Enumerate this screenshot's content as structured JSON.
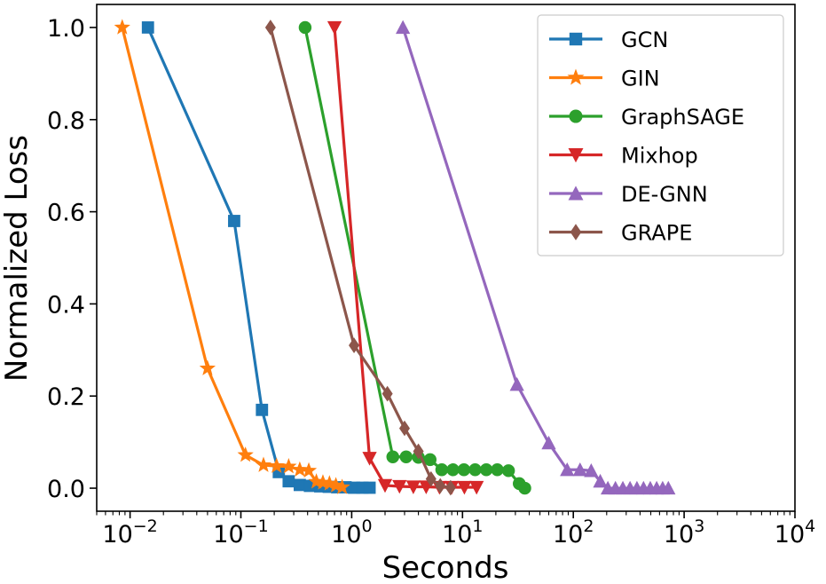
{
  "chart_data": {
    "type": "line",
    "xscale": "log",
    "xlabel": "Seconds",
    "ylabel": "Normalized Loss",
    "xlim": [
      0.005,
      10000
    ],
    "ylim": [
      -0.05,
      1.05
    ],
    "xticks": [
      {
        "value": 0.01,
        "base": "10",
        "exp": "−2"
      },
      {
        "value": 0.1,
        "base": "10",
        "exp": "−1"
      },
      {
        "value": 1,
        "base": "10",
        "exp": "0"
      },
      {
        "value": 10,
        "base": "10",
        "exp": "1"
      },
      {
        "value": 100,
        "base": "10",
        "exp": "2"
      },
      {
        "value": 1000,
        "base": "10",
        "exp": "3"
      },
      {
        "value": 10000,
        "base": "10",
        "exp": "4"
      }
    ],
    "yticks": [
      {
        "value": 0.0,
        "label": "0.0"
      },
      {
        "value": 0.2,
        "label": "0.2"
      },
      {
        "value": 0.4,
        "label": "0.4"
      },
      {
        "value": 0.6,
        "label": "0.6"
      },
      {
        "value": 0.8,
        "label": "0.8"
      },
      {
        "value": 1.0,
        "label": "1.0"
      }
    ],
    "legend_position": "top-right",
    "series": [
      {
        "name": "GCN",
        "color": "#1f77b4",
        "marker": "square",
        "x": [
          0.0145,
          0.087,
          0.155,
          0.22,
          0.27,
          0.34,
          0.42,
          0.52,
          0.62,
          0.74,
          0.88,
          1.05,
          1.25,
          1.45
        ],
        "y": [
          1.0,
          0.58,
          0.17,
          0.035,
          0.015,
          0.007,
          0.005,
          0.004,
          0.003,
          0.002,
          0.002,
          0.001,
          0.001,
          0.001
        ]
      },
      {
        "name": "GIN",
        "color": "#ff7f0e",
        "marker": "star",
        "x": [
          0.0085,
          0.05,
          0.11,
          0.16,
          0.21,
          0.27,
          0.34,
          0.41,
          0.48,
          0.55,
          0.63,
          0.72,
          0.82
        ],
        "y": [
          1.0,
          0.26,
          0.072,
          0.05,
          0.048,
          0.047,
          0.04,
          0.038,
          0.014,
          0.012,
          0.01,
          0.006,
          0.002
        ]
      },
      {
        "name": "GraphSAGE",
        "color": "#2ca02c",
        "marker": "circle",
        "x": [
          0.38,
          2.35,
          3.1,
          4.0,
          5.1,
          6.5,
          8.2,
          10.3,
          13.0,
          16.4,
          20.6,
          26.0,
          32.5,
          36.5
        ],
        "y": [
          1.0,
          0.068,
          0.068,
          0.067,
          0.062,
          0.04,
          0.04,
          0.04,
          0.04,
          0.04,
          0.04,
          0.038,
          0.01,
          0.0
        ]
      },
      {
        "name": "Mixhop",
        "color": "#d62728",
        "marker": "triangle_down",
        "x": [
          0.7,
          1.45,
          2.0,
          2.7,
          3.6,
          4.7,
          6.2,
          8.0,
          10.4,
          13.4
        ],
        "y": [
          1.0,
          0.065,
          0.006,
          0.004,
          0.003,
          0.003,
          0.002,
          0.002,
          0.002,
          0.002
        ]
      },
      {
        "name": "DE-GNN",
        "color": "#9467bd",
        "marker": "triangle_up",
        "x": [
          2.9,
          31,
          60,
          88,
          115,
          145,
          175,
          205,
          240,
          280,
          325,
          375,
          430,
          495,
          565,
          640,
          720
        ],
        "y": [
          1.0,
          0.225,
          0.098,
          0.04,
          0.04,
          0.038,
          0.015,
          0.0,
          0.0,
          0.0,
          0.0,
          0.0,
          0.0,
          0.0,
          0.0,
          0.0,
          0.0
        ]
      },
      {
        "name": "GRAPE",
        "color": "#8c564b",
        "marker": "diamond",
        "x": [
          0.185,
          1.05,
          2.1,
          3.0,
          4.0,
          5.2,
          6.3,
          7.8
        ],
        "y": [
          1.0,
          0.31,
          0.205,
          0.13,
          0.08,
          0.02,
          0.005,
          0.001
        ]
      }
    ]
  }
}
